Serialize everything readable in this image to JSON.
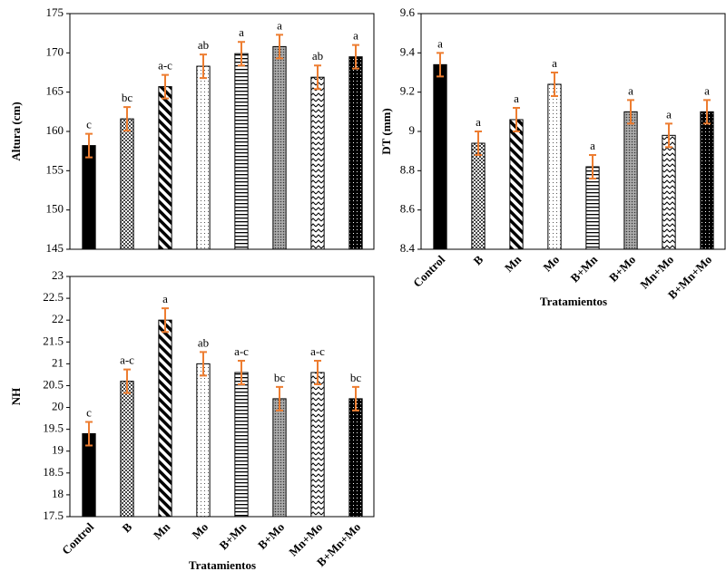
{
  "chart_data": [
    {
      "type": "bar",
      "ylabel": "Altura (cm)",
      "categories": [
        null,
        null,
        null,
        null,
        null,
        null,
        null,
        null
      ],
      "values": [
        158.2,
        161.6,
        165.7,
        168.3,
        169.9,
        170.8,
        166.9,
        169.5
      ],
      "errors": [
        1.5,
        1.5,
        1.5,
        1.5,
        1.5,
        1.5,
        1.5,
        1.5
      ],
      "annotations": [
        "c",
        "bc",
        "a-c",
        "ab",
        "a",
        "a",
        "ab",
        "a"
      ],
      "ylim": [
        145,
        175
      ],
      "yticks": [
        145,
        150,
        155,
        160,
        165,
        170,
        175
      ],
      "color": "#000000",
      "error_color": "#ed7d31"
    },
    {
      "type": "bar",
      "ylabel": "DT (mm)",
      "xlabel": "Tratamientos",
      "categories": [
        "Control",
        "B",
        "Mn",
        "Mo",
        "B+Mn",
        "B+Mo",
        "Mn+Mo",
        "B+Mn+Mo"
      ],
      "values": [
        9.34,
        8.94,
        9.06,
        9.24,
        8.82,
        9.1,
        8.98,
        9.1
      ],
      "errors": [
        0.06,
        0.06,
        0.06,
        0.06,
        0.06,
        0.06,
        0.06,
        0.06
      ],
      "annotations": [
        "a",
        "a",
        "a",
        "a",
        "a",
        "a",
        "a",
        "a"
      ],
      "ylim": [
        8.4,
        9.6
      ],
      "yticks": [
        8.4,
        8.6,
        8.8,
        9,
        9.2,
        9.4,
        9.6
      ],
      "color": "#000000",
      "error_color": "#ed7d31"
    },
    {
      "type": "bar",
      "ylabel": "NH",
      "xlabel": "Tratamientos",
      "categories": [
        "Control",
        "B",
        "Mn",
        "Mo",
        "B+Mn",
        "B+Mo",
        "Mn+Mo",
        "B+Mn+Mo"
      ],
      "values": [
        19.4,
        20.6,
        22.0,
        21.0,
        20.8,
        20.2,
        20.8,
        20.2
      ],
      "errors": [
        0.27,
        0.27,
        0.27,
        0.27,
        0.27,
        0.27,
        0.27,
        0.27
      ],
      "annotations": [
        "c",
        "a-c",
        "a",
        "ab",
        "a-c",
        "bc",
        "a-c",
        "bc"
      ],
      "ylim": [
        17.5,
        23
      ],
      "yticks": [
        17.5,
        18,
        18.5,
        19,
        19.5,
        20,
        20.5,
        21,
        21.5,
        22,
        22.5,
        23
      ],
      "color": "#000000",
      "error_color": "#ed7d31"
    }
  ]
}
